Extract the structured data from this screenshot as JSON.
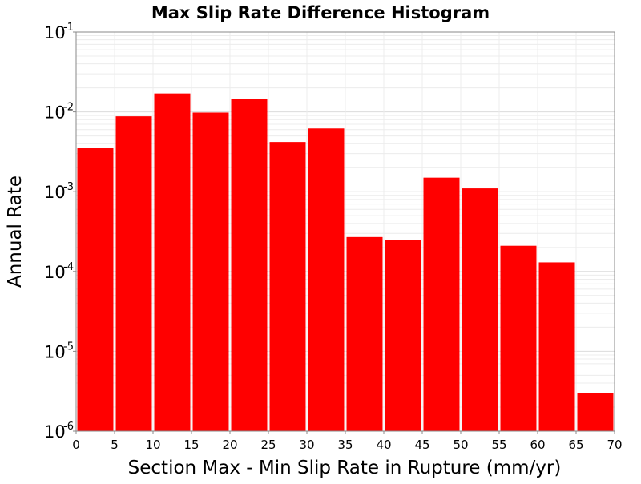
{
  "chart_data": {
    "type": "bar",
    "title": "Max Slip Rate Difference Histogram",
    "xlabel": "Section Max - Min Slip Rate in Rupture (mm/yr)",
    "ylabel": "Annual Rate",
    "xlim": [
      0,
      70
    ],
    "ylim": [
      1e-06,
      0.1
    ],
    "yscale": "log",
    "grid": true,
    "bar_color": "#ff0000",
    "x_ticks": [
      0,
      5,
      10,
      15,
      20,
      25,
      30,
      35,
      40,
      45,
      50,
      55,
      60,
      65,
      70
    ],
    "y_ticks": [
      {
        "value": 0.1,
        "base": "10",
        "exp": "-1"
      },
      {
        "value": 0.01,
        "base": "10",
        "exp": "-2"
      },
      {
        "value": 0.001,
        "base": "10",
        "exp": "-3"
      },
      {
        "value": 0.0001,
        "base": "10",
        "exp": "-4"
      },
      {
        "value": 1e-05,
        "base": "10",
        "exp": "-5"
      },
      {
        "value": 1e-06,
        "base": "10",
        "exp": "-6"
      }
    ],
    "bins": [
      {
        "x0": 0,
        "x1": 5,
        "value": 0.0035
      },
      {
        "x0": 5,
        "x1": 10,
        "value": 0.0088
      },
      {
        "x0": 10,
        "x1": 15,
        "value": 0.017
      },
      {
        "x0": 15,
        "x1": 20,
        "value": 0.0098
      },
      {
        "x0": 20,
        "x1": 25,
        "value": 0.0145
      },
      {
        "x0": 25,
        "x1": 30,
        "value": 0.0042
      },
      {
        "x0": 30,
        "x1": 35,
        "value": 0.0062
      },
      {
        "x0": 35,
        "x1": 40,
        "value": 0.00027
      },
      {
        "x0": 40,
        "x1": 45,
        "value": 0.00025
      },
      {
        "x0": 45,
        "x1": 50,
        "value": 0.0015
      },
      {
        "x0": 50,
        "x1": 55,
        "value": 0.0011
      },
      {
        "x0": 55,
        "x1": 60,
        "value": 0.00021
      },
      {
        "x0": 60,
        "x1": 65,
        "value": 0.00013
      },
      {
        "x0": 65,
        "x1": 70,
        "value": 3e-06
      }
    ]
  }
}
